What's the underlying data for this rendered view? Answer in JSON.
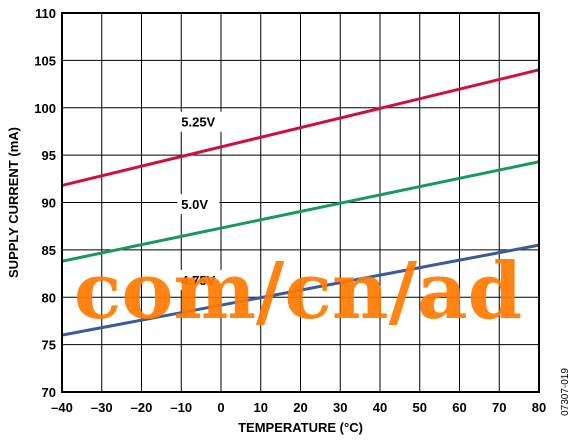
{
  "chart_data": {
    "type": "line",
    "xlabel": "TEMPERATURE (°C)",
    "ylabel": "SUPPLY CURRENT (mA)",
    "xlim": [
      -40,
      80
    ],
    "ylim": [
      70,
      110
    ],
    "x_ticks": [
      -40,
      -30,
      -20,
      -10,
      0,
      10,
      20,
      30,
      40,
      50,
      60,
      70,
      80
    ],
    "y_ticks": [
      70,
      75,
      80,
      85,
      90,
      95,
      100,
      105,
      110
    ],
    "x_tick_labels": [
      "–40",
      "–30",
      "–20",
      "–10",
      "0",
      "10",
      "20",
      "30",
      "40",
      "50",
      "60",
      "70",
      "80"
    ],
    "y_tick_labels": [
      "70",
      "75",
      "80",
      "85",
      "90",
      "95",
      "100",
      "105",
      "110"
    ],
    "grid": true,
    "series": [
      {
        "name": "5.25V",
        "color": "#d0103a",
        "x": [
          -40,
          80
        ],
        "y": [
          91.8,
          104.0
        ],
        "label_at": [
          -10,
          98
        ]
      },
      {
        "name": "5.0V",
        "color": "#1a9a5a",
        "x": [
          -40,
          80
        ],
        "y": [
          83.8,
          94.3
        ],
        "label_at": [
          -10,
          89.3
        ]
      },
      {
        "name": "4.75V",
        "color": "#3a5a9a",
        "x": [
          -40,
          80
        ],
        "y": [
          76.0,
          85.5
        ],
        "label_at": [
          -10,
          81.3
        ]
      }
    ],
    "figure_code": "07307-019"
  },
  "watermark": {
    "text": "com/cn/ad"
  }
}
